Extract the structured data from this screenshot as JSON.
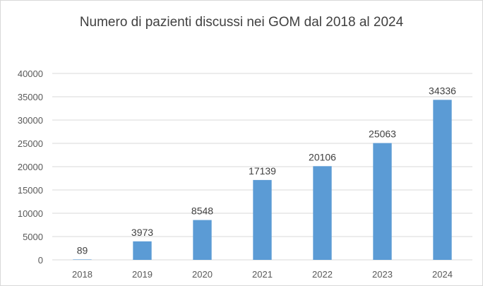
{
  "chart_data": {
    "type": "bar",
    "title": "Numero di pazienti discussi nei GOM dal 2018 al 2024",
    "xlabel": "",
    "ylabel": "",
    "categories": [
      "2018",
      "2019",
      "2020",
      "2021",
      "2022",
      "2023",
      "2024"
    ],
    "values": [
      89,
      3973,
      8548,
      17139,
      20106,
      25063,
      34336
    ],
    "data_labels": [
      "89",
      "3973",
      "8548",
      "17139",
      "20106",
      "25063",
      "34336"
    ],
    "y_ticks": [
      "0",
      "5000",
      "10000",
      "15000",
      "20000",
      "25000",
      "30000",
      "35000",
      "40000"
    ],
    "ylim": [
      0,
      40000
    ],
    "grid": true,
    "legend": "none",
    "colors": {
      "bar": "#5b9bd5",
      "grid": "#d9d9d9",
      "text": "#595959"
    }
  }
}
